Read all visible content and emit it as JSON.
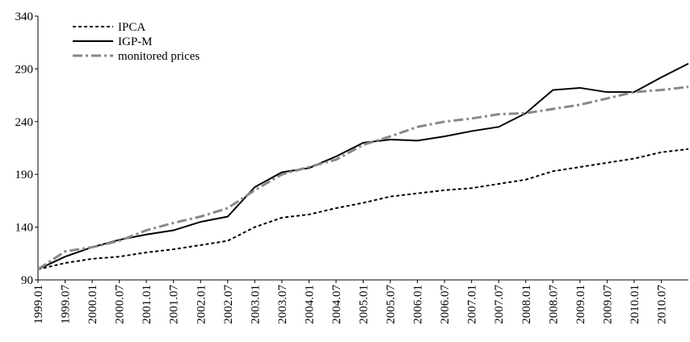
{
  "chart_data": {
    "type": "line",
    "categories": [
      "1999.01",
      "1999.07",
      "2000.01",
      "2000.07",
      "2001.01",
      "2001.07",
      "2002.01",
      "2002.07",
      "2003.01",
      "2003.07",
      "2004.01",
      "2004.07",
      "2005.01",
      "2005.07",
      "2006.01",
      "2006.07",
      "2007.01",
      "2007.07",
      "2008.01",
      "2008.07",
      "2009.01",
      "2009.07",
      "2010.01",
      "2010.07",
      null
    ],
    "series": [
      {
        "name": "IPCA",
        "color": "#000000",
        "style": "dashed",
        "values": [
          100,
          106,
          110,
          112,
          116,
          119,
          123,
          127,
          140,
          149,
          152,
          158,
          163,
          169,
          172,
          175,
          177,
          181,
          185,
          193,
          197,
          201,
          205,
          211,
          214
        ]
      },
      {
        "name": "IGP-M",
        "color": "#000000",
        "style": "solid",
        "values": [
          100,
          112,
          121,
          128,
          133,
          137,
          145,
          150,
          178,
          192,
          196,
          207,
          220,
          223,
          222,
          226,
          231,
          235,
          248,
          270,
          272,
          268,
          268,
          282,
          295
        ]
      },
      {
        "name": "monitored prices",
        "color": "#888888",
        "style": "dashdot",
        "values": [
          100,
          117,
          121,
          127,
          137,
          144,
          150,
          158,
          175,
          190,
          197,
          204,
          218,
          226,
          235,
          240,
          243,
          247,
          248,
          252,
          256,
          262,
          268,
          270,
          273
        ]
      }
    ],
    "ylim": [
      90,
      340
    ],
    "yticks": [
      90,
      140,
      190,
      240,
      290,
      340
    ],
    "legend": "upper left"
  }
}
